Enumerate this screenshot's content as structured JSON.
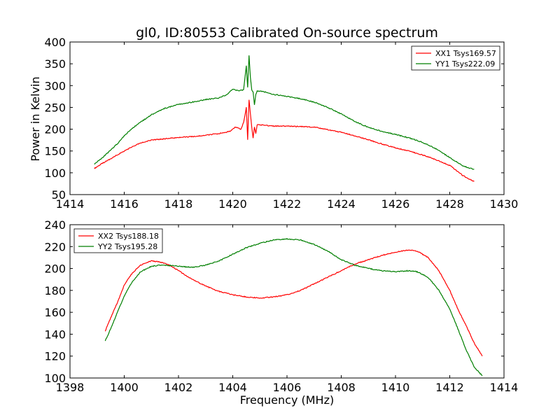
{
  "chart_data": [
    {
      "type": "line",
      "title": "gl0, ID:80553 Calibrated On-source spectrum",
      "xlabel": "",
      "ylabel": "Power in Kelvin",
      "xlim": [
        1414,
        1430
      ],
      "ylim": [
        50,
        400
      ],
      "xticks": [
        1414,
        1416,
        1418,
        1420,
        1422,
        1424,
        1426,
        1428,
        1430
      ],
      "yticks": [
        50,
        100,
        150,
        200,
        250,
        300,
        350,
        400
      ],
      "grid": false,
      "legend_position": "top-right",
      "series": [
        {
          "name": "XX1 Tsys169.57",
          "color": "#ff0000",
          "x": [
            1414.9,
            1415.2,
            1415.5,
            1415.8,
            1416.0,
            1416.3,
            1416.6,
            1417.0,
            1417.5,
            1418.0,
            1418.5,
            1419.0,
            1419.5,
            1419.9,
            1420.1,
            1420.3,
            1420.4,
            1420.5,
            1420.55,
            1420.6,
            1420.65,
            1420.7,
            1420.75,
            1420.8,
            1420.85,
            1420.9,
            1421.2,
            1421.5,
            1422.0,
            1422.5,
            1423.0,
            1423.5,
            1424.0,
            1424.5,
            1425.0,
            1425.5,
            1426.0,
            1426.5,
            1427.0,
            1427.5,
            1428.0,
            1428.5,
            1428.9
          ],
          "y": [
            110,
            122,
            132,
            143,
            150,
            160,
            168,
            175,
            178,
            181,
            183,
            186,
            190,
            195,
            205,
            200,
            215,
            250,
            175,
            268,
            235,
            205,
            180,
            205,
            190,
            210,
            209,
            207,
            207,
            206,
            205,
            199,
            193,
            185,
            176,
            166,
            157,
            150,
            141,
            130,
            117,
            93,
            80
          ]
        },
        {
          "name": "YY1 Tsys222.09",
          "color": "#007f00",
          "x": [
            1414.9,
            1415.2,
            1415.5,
            1415.8,
            1416.0,
            1416.3,
            1416.6,
            1417.0,
            1417.5,
            1418.0,
            1418.5,
            1419.0,
            1419.5,
            1419.8,
            1420.0,
            1420.2,
            1420.4,
            1420.5,
            1420.55,
            1420.6,
            1420.65,
            1420.7,
            1420.75,
            1420.8,
            1420.85,
            1420.9,
            1421.2,
            1421.5,
            1422.0,
            1422.5,
            1423.0,
            1423.5,
            1424.0,
            1424.5,
            1425.0,
            1425.5,
            1426.0,
            1426.5,
            1427.0,
            1427.5,
            1428.0,
            1428.5,
            1428.9
          ],
          "y": [
            120,
            135,
            152,
            170,
            185,
            202,
            216,
            233,
            248,
            257,
            262,
            268,
            272,
            280,
            292,
            288,
            290,
            345,
            295,
            370,
            320,
            290,
            285,
            255,
            280,
            288,
            285,
            280,
            275,
            270,
            262,
            250,
            235,
            218,
            204,
            195,
            188,
            180,
            170,
            155,
            135,
            115,
            108
          ]
        }
      ]
    },
    {
      "type": "line",
      "title": "",
      "xlabel": "Frequency (MHz)",
      "ylabel": "",
      "xlim": [
        1398,
        1414
      ],
      "ylim": [
        100,
        240
      ],
      "xticks": [
        1398,
        1400,
        1402,
        1404,
        1406,
        1408,
        1410,
        1412,
        1414
      ],
      "yticks": [
        100,
        120,
        140,
        160,
        180,
        200,
        220,
        240
      ],
      "grid": false,
      "legend_position": "top-left",
      "series": [
        {
          "name": "XX2 Tsys188.18",
          "color": "#ff0000",
          "x": [
            1399.3,
            1399.5,
            1399.8,
            1400.0,
            1400.3,
            1400.6,
            1401.0,
            1401.3,
            1401.6,
            1402.0,
            1402.5,
            1403.0,
            1403.5,
            1404.0,
            1404.5,
            1405.0,
            1405.5,
            1406.0,
            1406.5,
            1407.0,
            1407.5,
            1408.0,
            1408.5,
            1409.0,
            1409.5,
            1410.0,
            1410.5,
            1410.8,
            1411.2,
            1411.6,
            1412.0,
            1412.3,
            1412.6,
            1412.9,
            1413.2
          ],
          "y": [
            143,
            155,
            172,
            185,
            196,
            203,
            207,
            206,
            204,
            198,
            190,
            184,
            179,
            176,
            174,
            173,
            174,
            176,
            180,
            186,
            192,
            198,
            204,
            208,
            212,
            215,
            217,
            216,
            210,
            198,
            180,
            163,
            148,
            132,
            120
          ]
        },
        {
          "name": "YY2 Tsys195.28",
          "color": "#007f00",
          "x": [
            1399.3,
            1399.5,
            1399.8,
            1400.0,
            1400.3,
            1400.6,
            1401.0,
            1401.3,
            1401.6,
            1402.0,
            1402.5,
            1403.0,
            1403.5,
            1404.0,
            1404.5,
            1405.0,
            1405.5,
            1406.0,
            1406.5,
            1407.0,
            1407.5,
            1408.0,
            1408.5,
            1409.0,
            1409.5,
            1410.0,
            1410.5,
            1410.8,
            1411.2,
            1411.6,
            1412.0,
            1412.3,
            1412.6,
            1412.9,
            1413.2
          ],
          "y": [
            134,
            145,
            163,
            175,
            188,
            197,
            202,
            203,
            203,
            202,
            201,
            203,
            207,
            213,
            219,
            223,
            226,
            227,
            226,
            222,
            216,
            208,
            203,
            200,
            198,
            197,
            198,
            197,
            192,
            180,
            163,
            145,
            126,
            110,
            102
          ]
        }
      ]
    }
  ]
}
